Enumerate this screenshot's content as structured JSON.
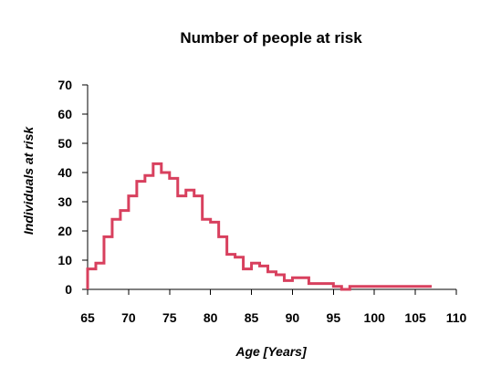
{
  "chart_data": {
    "type": "line",
    "step": true,
    "title": "Number of people at risk",
    "xlabel": "Age [Years]",
    "ylabel": "Individuals at risk",
    "xlim": [
      65,
      110
    ],
    "ylim": [
      0,
      70
    ],
    "x_ticks": [
      "65",
      "70",
      "75",
      "80",
      "85",
      "90",
      "95",
      "100",
      "105",
      "110"
    ],
    "y_ticks": [
      "0",
      "10",
      "20",
      "30",
      "40",
      "50",
      "60",
      "70"
    ],
    "grid": false,
    "legend": "none",
    "series": [
      {
        "color": "#d8405e",
        "points": [
          [
            65,
            7
          ],
          [
            66,
            9
          ],
          [
            67,
            18
          ],
          [
            68,
            24
          ],
          [
            69,
            27
          ],
          [
            70,
            32
          ],
          [
            71,
            37
          ],
          [
            72,
            39
          ],
          [
            73,
            43
          ],
          [
            74,
            40
          ],
          [
            75,
            38
          ],
          [
            76,
            32
          ],
          [
            77,
            34
          ],
          [
            78,
            32
          ],
          [
            79,
            24
          ],
          [
            80,
            23
          ],
          [
            81,
            18
          ],
          [
            82,
            12
          ],
          [
            83,
            11
          ],
          [
            84,
            7
          ],
          [
            85,
            9
          ],
          [
            86,
            8
          ],
          [
            87,
            6
          ],
          [
            88,
            5
          ],
          [
            89,
            3
          ],
          [
            90,
            4
          ],
          [
            92,
            2
          ],
          [
            95,
            1
          ],
          [
            96,
            0
          ],
          [
            97,
            1
          ],
          [
            107,
            1
          ]
        ]
      }
    ]
  }
}
